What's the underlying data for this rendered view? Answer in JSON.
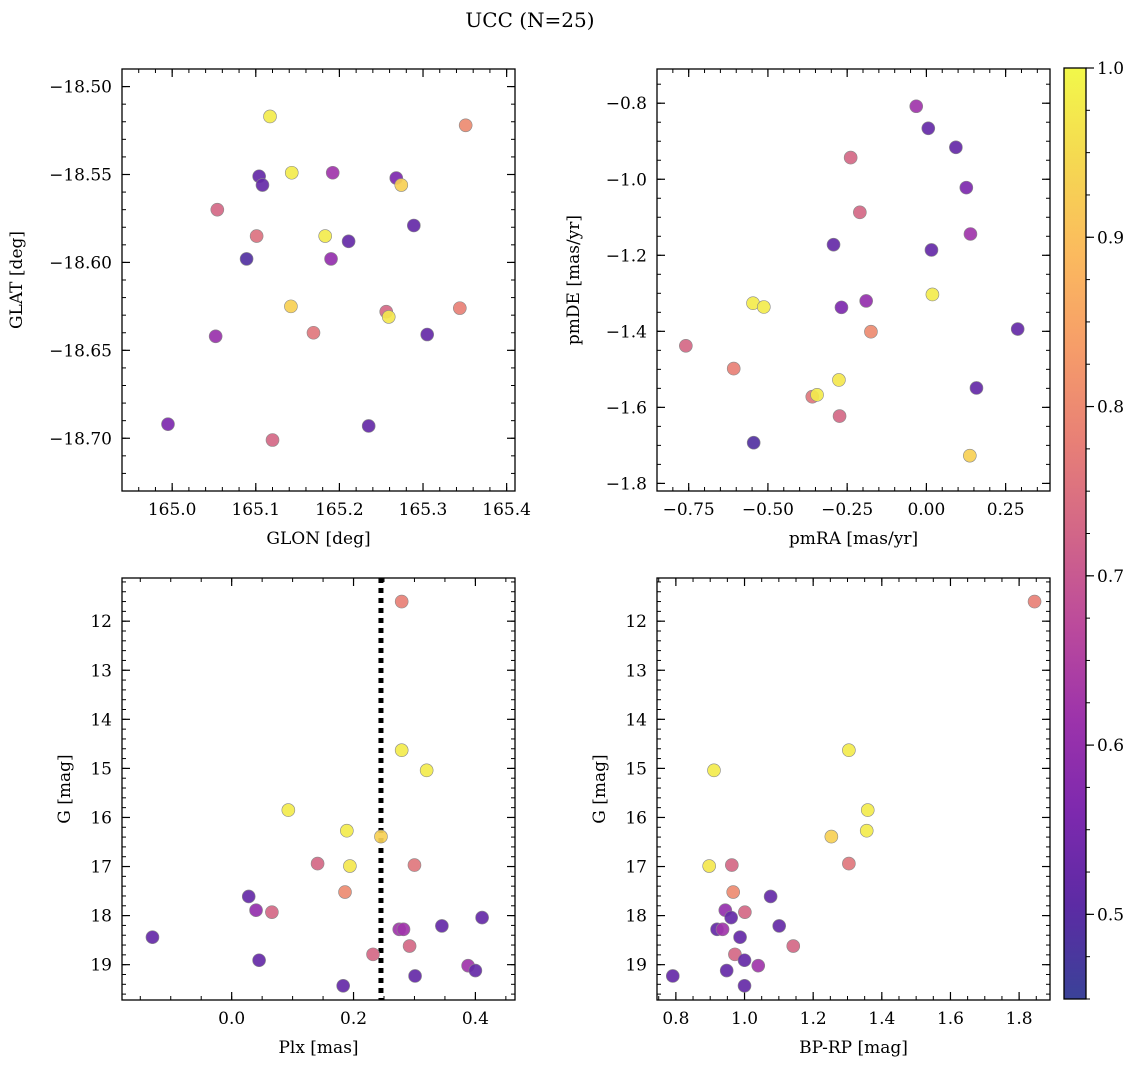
{
  "title": "UCC (N=25)",
  "colorbar": {
    "vmin": 0.45,
    "vmax": 1.0,
    "ticks": [
      "0.5",
      "0.6",
      "0.7",
      "0.8",
      "0.9",
      "1.0"
    ],
    "tick_values": [
      0.5,
      0.6,
      0.7,
      0.8,
      0.9,
      1.0
    ],
    "colormap": "plasma"
  },
  "chart_data": [
    {
      "type": "scatter",
      "xlabel": "GLON [deg]",
      "ylabel": "GLAT [deg]",
      "xlim": [
        164.94,
        165.41
      ],
      "ylim": [
        -18.73,
        -18.49
      ],
      "y_inverted": false,
      "xticks": [
        165.0,
        165.1,
        165.2,
        165.3,
        165.4
      ],
      "xtick_labels": [
        "165.0",
        "165.1",
        "165.2",
        "165.3",
        "165.4"
      ],
      "yticks": [
        -18.5,
        -18.55,
        -18.6,
        -18.65,
        -18.7
      ],
      "ytick_labels": [
        "−18.50",
        "−18.55",
        "−18.60",
        "−18.65",
        "−18.70"
      ],
      "x_minor_step": 0.02,
      "y_minor_step": 0.01,
      "points": [
        {
          "x": 165.117,
          "y": -18.517,
          "c": 0.98
        },
        {
          "x": 165.351,
          "y": -18.522,
          "c": 0.8
        },
        {
          "x": 165.143,
          "y": -18.549,
          "c": 0.98
        },
        {
          "x": 165.192,
          "y": -18.549,
          "c": 0.62
        },
        {
          "x": 165.104,
          "y": -18.551,
          "c": 0.52
        },
        {
          "x": 165.268,
          "y": -18.552,
          "c": 0.56
        },
        {
          "x": 165.108,
          "y": -18.556,
          "c": 0.52
        },
        {
          "x": 165.274,
          "y": -18.556,
          "c": 0.93
        },
        {
          "x": 165.054,
          "y": -18.57,
          "c": 0.73
        },
        {
          "x": 165.289,
          "y": -18.579,
          "c": 0.52
        },
        {
          "x": 165.101,
          "y": -18.585,
          "c": 0.75
        },
        {
          "x": 165.183,
          "y": -18.585,
          "c": 0.98
        },
        {
          "x": 165.211,
          "y": -18.588,
          "c": 0.52
        },
        {
          "x": 165.089,
          "y": -18.598,
          "c": 0.49
        },
        {
          "x": 165.19,
          "y": -18.598,
          "c": 0.6
        },
        {
          "x": 165.142,
          "y": -18.625,
          "c": 0.93
        },
        {
          "x": 165.344,
          "y": -18.626,
          "c": 0.78
        },
        {
          "x": 165.256,
          "y": -18.628,
          "c": 0.73
        },
        {
          "x": 165.259,
          "y": -18.631,
          "c": 0.97
        },
        {
          "x": 165.169,
          "y": -18.64,
          "c": 0.76
        },
        {
          "x": 165.305,
          "y": -18.641,
          "c": 0.52
        },
        {
          "x": 165.052,
          "y": -18.642,
          "c": 0.61
        },
        {
          "x": 164.995,
          "y": -18.692,
          "c": 0.56
        },
        {
          "x": 165.235,
          "y": -18.693,
          "c": 0.52
        },
        {
          "x": 165.12,
          "y": -18.701,
          "c": 0.73
        }
      ]
    },
    {
      "type": "scatter",
      "xlabel": "pmRA [mas/yr]",
      "ylabel": "pmDE [mas/yr]",
      "xlim": [
        -0.85,
        0.39
      ],
      "ylim": [
        -1.82,
        -0.71
      ],
      "y_inverted": false,
      "xticks": [
        -0.75,
        -0.5,
        -0.25,
        0.0,
        0.25
      ],
      "xtick_labels": [
        "−0.75",
        "−0.50",
        "−0.25",
        "0.00",
        "0.25"
      ],
      "yticks": [
        -0.8,
        -1.0,
        -1.2,
        -1.4,
        -1.6,
        -1.8
      ],
      "ytick_labels": [
        "−0.8",
        "−1.0",
        "−1.2",
        "−1.4",
        "−1.6",
        "−1.8"
      ],
      "x_minor_step": 0.05,
      "y_minor_step": 0.05,
      "points": [
        {
          "x": -0.032,
          "y": -0.808,
          "c": 0.62
        },
        {
          "x": 0.006,
          "y": -0.866,
          "c": 0.52
        },
        {
          "x": 0.093,
          "y": -0.916,
          "c": 0.52
        },
        {
          "x": -0.239,
          "y": -0.943,
          "c": 0.73
        },
        {
          "x": 0.126,
          "y": -1.022,
          "c": 0.56
        },
        {
          "x": -0.21,
          "y": -1.087,
          "c": 0.73
        },
        {
          "x": 0.139,
          "y": -1.144,
          "c": 0.62
        },
        {
          "x": -0.293,
          "y": -1.172,
          "c": 0.52
        },
        {
          "x": 0.016,
          "y": -1.186,
          "c": 0.52
        },
        {
          "x": 0.019,
          "y": -1.303,
          "c": 0.98
        },
        {
          "x": -0.547,
          "y": -1.326,
          "c": 0.98
        },
        {
          "x": -0.19,
          "y": -1.32,
          "c": 0.6
        },
        {
          "x": -0.513,
          "y": -1.336,
          "c": 0.98
        },
        {
          "x": -0.268,
          "y": -1.337,
          "c": 0.56
        },
        {
          "x": -0.175,
          "y": -1.401,
          "c": 0.8
        },
        {
          "x": 0.288,
          "y": -1.394,
          "c": 0.52
        },
        {
          "x": -0.759,
          "y": -1.438,
          "c": 0.73
        },
        {
          "x": -0.608,
          "y": -1.498,
          "c": 0.78
        },
        {
          "x": -0.276,
          "y": -1.528,
          "c": 0.97
        },
        {
          "x": 0.158,
          "y": -1.549,
          "c": 0.52
        },
        {
          "x": -0.36,
          "y": -1.572,
          "c": 0.76
        },
        {
          "x": -0.345,
          "y": -1.567,
          "c": 0.98
        },
        {
          "x": -0.274,
          "y": -1.623,
          "c": 0.73
        },
        {
          "x": -0.545,
          "y": -1.693,
          "c": 0.49
        },
        {
          "x": 0.137,
          "y": -1.727,
          "c": 0.93
        }
      ]
    },
    {
      "type": "scatter",
      "xlabel": "Plx [mas]",
      "ylabel": "G [mag]",
      "xlim": [
        -0.18,
        0.465
      ],
      "ylim": [
        19.72,
        11.12
      ],
      "y_inverted": true,
      "xticks": [
        0.0,
        0.2,
        0.4
      ],
      "xtick_labels": [
        "0.0",
        "0.2",
        "0.4"
      ],
      "yticks": [
        12,
        13,
        14,
        15,
        16,
        17,
        18,
        19
      ],
      "ytick_labels": [
        "12",
        "13",
        "14",
        "15",
        "16",
        "17",
        "18",
        "19"
      ],
      "x_minor_step": 0.05,
      "y_minor_step": 0.2,
      "vline_x": 0.245,
      "points": [
        {
          "x": 0.279,
          "y": 11.6,
          "c": 0.78
        },
        {
          "x": 0.279,
          "y": 14.63,
          "c": 0.98
        },
        {
          "x": 0.32,
          "y": 15.04,
          "c": 0.98
        },
        {
          "x": 0.093,
          "y": 15.85,
          "c": 0.98
        },
        {
          "x": 0.189,
          "y": 16.27,
          "c": 0.98
        },
        {
          "x": 0.245,
          "y": 16.39,
          "c": 0.93
        },
        {
          "x": 0.141,
          "y": 16.94,
          "c": 0.73
        },
        {
          "x": 0.194,
          "y": 16.99,
          "c": 0.97
        },
        {
          "x": 0.3,
          "y": 16.97,
          "c": 0.76
        },
        {
          "x": 0.186,
          "y": 17.52,
          "c": 0.8
        },
        {
          "x": 0.028,
          "y": 17.61,
          "c": 0.52
        },
        {
          "x": 0.04,
          "y": 17.89,
          "c": 0.6
        },
        {
          "x": 0.066,
          "y": 17.93,
          "c": 0.73
        },
        {
          "x": 0.411,
          "y": 18.04,
          "c": 0.52
        },
        {
          "x": 0.345,
          "y": 18.21,
          "c": 0.52
        },
        {
          "x": 0.275,
          "y": 18.28,
          "c": 0.62
        },
        {
          "x": 0.282,
          "y": 18.28,
          "c": 0.62
        },
        {
          "x": -0.13,
          "y": 18.44,
          "c": 0.52
        },
        {
          "x": 0.292,
          "y": 18.62,
          "c": 0.73
        },
        {
          "x": 0.232,
          "y": 18.79,
          "c": 0.73
        },
        {
          "x": 0.045,
          "y": 18.91,
          "c": 0.52
        },
        {
          "x": 0.388,
          "y": 19.02,
          "c": 0.62
        },
        {
          "x": 0.4,
          "y": 19.12,
          "c": 0.52
        },
        {
          "x": 0.301,
          "y": 19.23,
          "c": 0.52
        },
        {
          "x": 0.183,
          "y": 19.43,
          "c": 0.52
        }
      ]
    },
    {
      "type": "scatter",
      "xlabel": "BP-RP [mag]",
      "ylabel": "G [mag]",
      "xlim": [
        0.745,
        1.89
      ],
      "ylim": [
        19.72,
        11.12
      ],
      "y_inverted": true,
      "xticks": [
        0.8,
        1.0,
        1.2,
        1.4,
        1.6,
        1.8
      ],
      "xtick_labels": [
        "0.8",
        "1.0",
        "1.2",
        "1.4",
        "1.6",
        "1.8"
      ],
      "yticks": [
        12,
        13,
        14,
        15,
        16,
        17,
        18,
        19
      ],
      "ytick_labels": [
        "12",
        "13",
        "14",
        "15",
        "16",
        "17",
        "18",
        "19"
      ],
      "x_minor_step": 0.05,
      "y_minor_step": 0.2,
      "points": [
        {
          "x": 1.845,
          "y": 11.6,
          "c": 0.78
        },
        {
          "x": 1.304,
          "y": 14.63,
          "c": 0.98
        },
        {
          "x": 0.911,
          "y": 15.04,
          "c": 0.98
        },
        {
          "x": 1.359,
          "y": 15.85,
          "c": 0.98
        },
        {
          "x": 1.356,
          "y": 16.27,
          "c": 0.98
        },
        {
          "x": 1.253,
          "y": 16.39,
          "c": 0.93
        },
        {
          "x": 0.963,
          "y": 16.97,
          "c": 0.73
        },
        {
          "x": 1.304,
          "y": 16.94,
          "c": 0.76
        },
        {
          "x": 0.897,
          "y": 16.99,
          "c": 0.97
        },
        {
          "x": 0.967,
          "y": 17.52,
          "c": 0.8
        },
        {
          "x": 1.076,
          "y": 17.61,
          "c": 0.52
        },
        {
          "x": 0.944,
          "y": 17.89,
          "c": 0.6
        },
        {
          "x": 1.001,
          "y": 17.93,
          "c": 0.73
        },
        {
          "x": 0.961,
          "y": 18.04,
          "c": 0.52
        },
        {
          "x": 1.101,
          "y": 18.21,
          "c": 0.52
        },
        {
          "x": 0.92,
          "y": 18.28,
          "c": 0.52
        },
        {
          "x": 0.936,
          "y": 18.28,
          "c": 0.62
        },
        {
          "x": 0.987,
          "y": 18.44,
          "c": 0.52
        },
        {
          "x": 1.142,
          "y": 18.62,
          "c": 0.73
        },
        {
          "x": 0.972,
          "y": 18.79,
          "c": 0.73
        },
        {
          "x": 1.0,
          "y": 18.91,
          "c": 0.52
        },
        {
          "x": 1.04,
          "y": 19.02,
          "c": 0.62
        },
        {
          "x": 0.948,
          "y": 19.12,
          "c": 0.52
        },
        {
          "x": 0.791,
          "y": 19.23,
          "c": 0.52
        },
        {
          "x": 1.0,
          "y": 19.43,
          "c": 0.52
        }
      ]
    }
  ]
}
